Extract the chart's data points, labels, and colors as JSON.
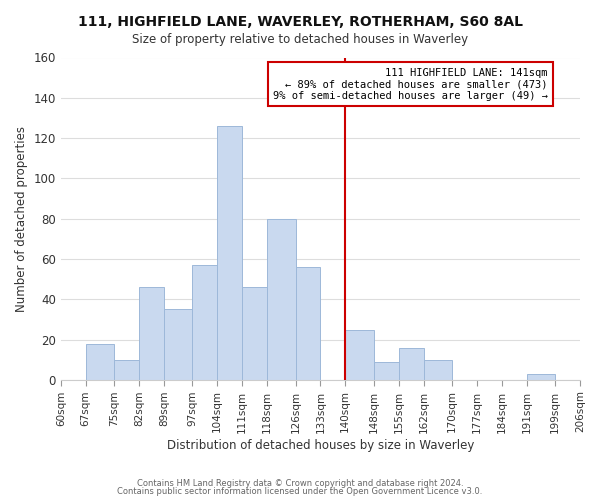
{
  "title1": "111, HIGHFIELD LANE, WAVERLEY, ROTHERHAM, S60 8AL",
  "title2": "Size of property relative to detached houses in Waverley",
  "xlabel": "Distribution of detached houses by size in Waverley",
  "ylabel": "Number of detached properties",
  "bins": [
    60,
    67,
    75,
    82,
    89,
    97,
    104,
    111,
    118,
    126,
    133,
    140,
    148,
    155,
    162,
    170,
    177,
    184,
    191,
    199,
    206
  ],
  "counts": [
    0,
    18,
    10,
    46,
    35,
    57,
    126,
    46,
    80,
    56,
    0,
    25,
    9,
    16,
    10,
    0,
    0,
    0,
    3,
    0
  ],
  "tick_labels": [
    "60sqm",
    "67sqm",
    "75sqm",
    "82sqm",
    "89sqm",
    "97sqm",
    "104sqm",
    "111sqm",
    "118sqm",
    "126sqm",
    "133sqm",
    "140sqm",
    "148sqm",
    "155sqm",
    "162sqm",
    "170sqm",
    "177sqm",
    "184sqm",
    "191sqm",
    "199sqm",
    "206sqm"
  ],
  "bar_color": "#c9d9ef",
  "bar_edge_color": "#9db8d9",
  "vline_x": 140,
  "vline_color": "#cc0000",
  "annotation_title": "111 HIGHFIELD LANE: 141sqm",
  "annotation_line1": "← 89% of detached houses are smaller (473)",
  "annotation_line2": "9% of semi-detached houses are larger (49) →",
  "annotation_box_color": "#ffffff",
  "annotation_box_edge": "#cc0000",
  "ylim": [
    0,
    160
  ],
  "yticks": [
    0,
    20,
    40,
    60,
    80,
    100,
    120,
    140,
    160
  ],
  "footer1": "Contains HM Land Registry data © Crown copyright and database right 2024.",
  "footer2": "Contains public sector information licensed under the Open Government Licence v3.0.",
  "background_color": "#ffffff",
  "grid_color": "#dddddd"
}
